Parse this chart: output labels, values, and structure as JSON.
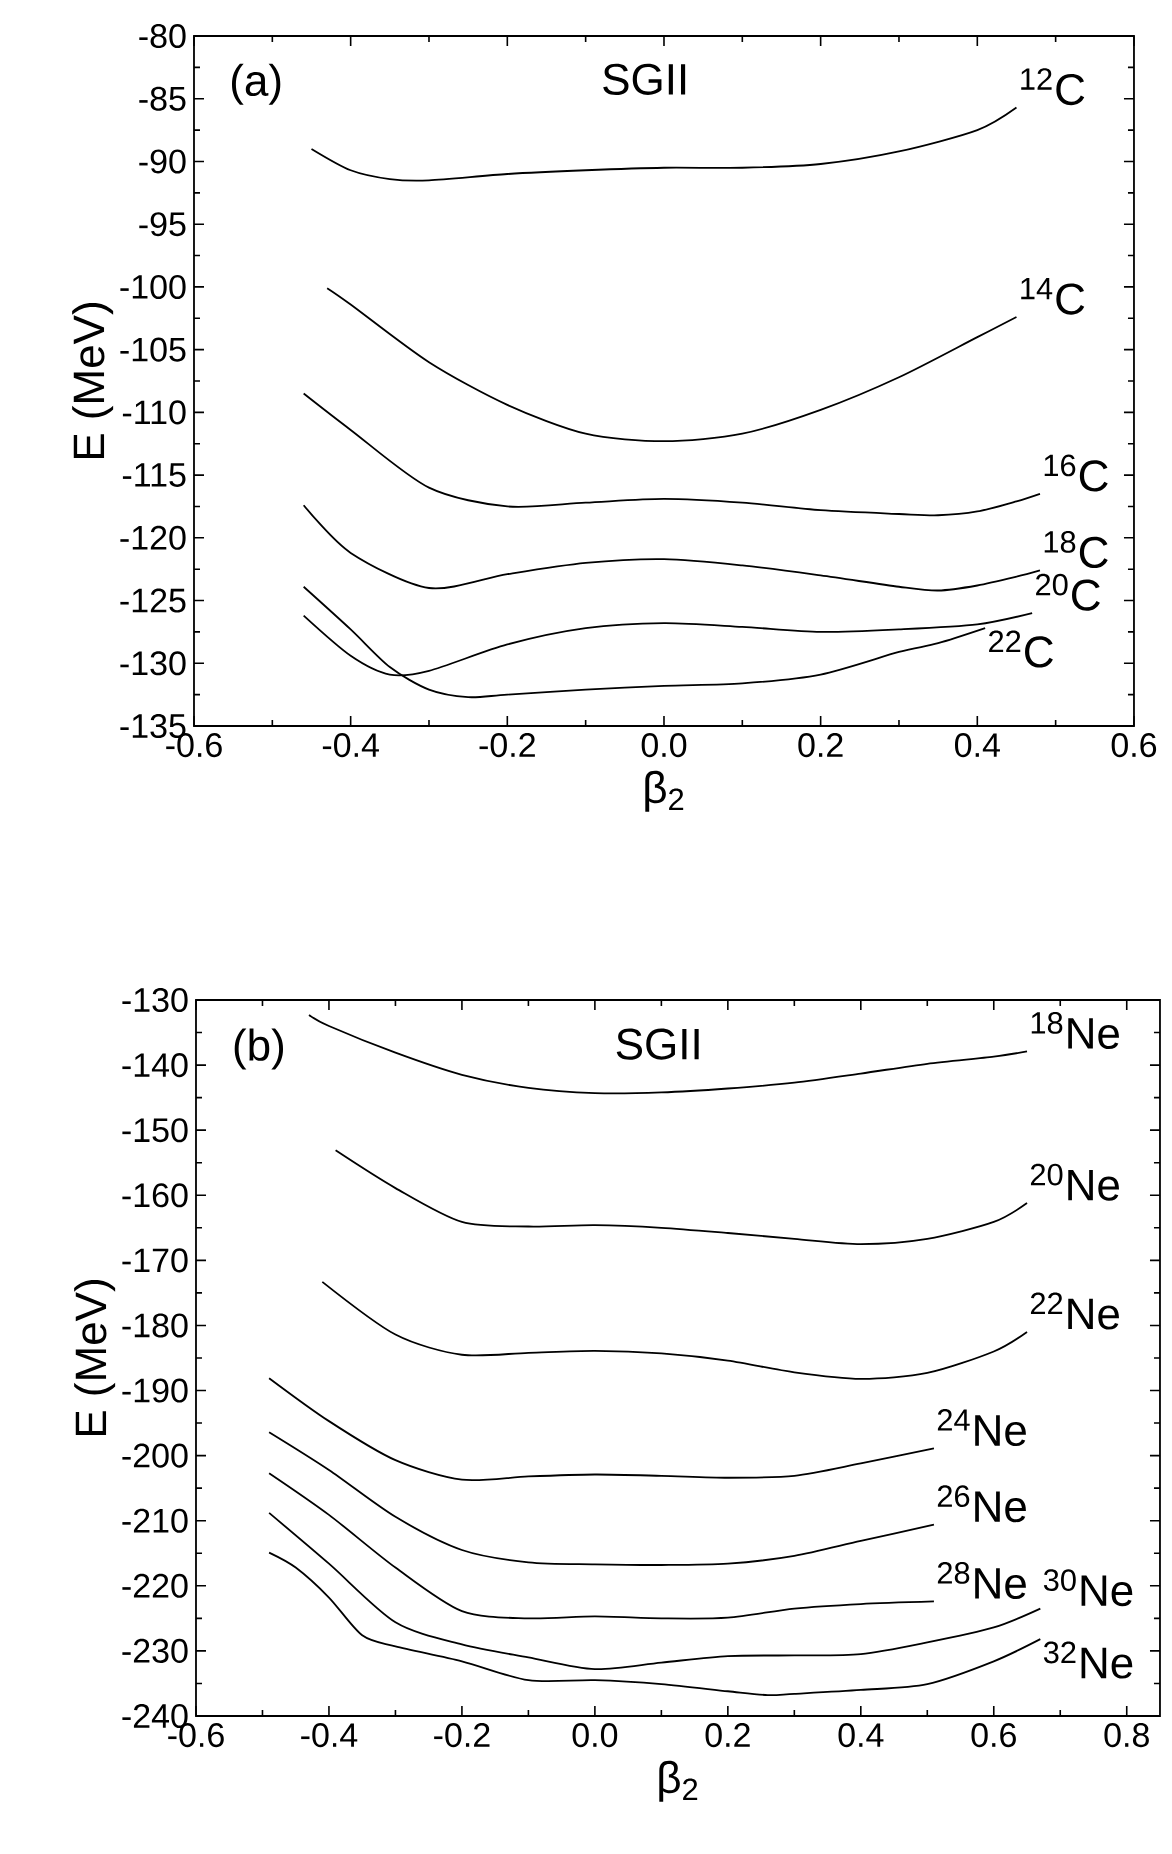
{
  "chart_data": [
    {
      "type": "line",
      "title": "SGII",
      "xlabel": "β$_{2}$",
      "ylabel": "E (MeV)",
      "annotations": [
        "(a)"
      ],
      "xlim": [
        -0.6,
        0.6
      ],
      "xticks": [
        -0.6,
        -0.4,
        -0.2,
        {
          "value": 0,
          "label": "0.0"
        },
        0.2,
        0.4,
        0.6
      ],
      "ylim": [
        -135,
        -80
      ],
      "yticks": [
        -135,
        -130,
        -125,
        -120,
        -115,
        -110,
        -105,
        -100,
        -95,
        -90,
        -85,
        -80
      ],
      "legend": "right",
      "grid": false,
      "series": [
        {
          "name": "$^{12}$C",
          "color": "#000000",
          "x": [
            -0.45,
            -0.4,
            -0.35,
            -0.3,
            -0.2,
            -0.1,
            0,
            0.1,
            0.2,
            0.3,
            0.4,
            0.45
          ],
          "values": [
            -89,
            -90.7,
            -91.4,
            -91.5,
            -91.0,
            -90.7,
            -90.5,
            -90.5,
            -90.2,
            -89.2,
            -87.5,
            -85.7
          ]
        },
        {
          "name": "$^{14}$C",
          "color": "#000000",
          "x": [
            -0.43,
            -0.4,
            -0.3,
            -0.2,
            -0.1,
            0,
            0.1,
            0.2,
            0.3,
            0.4,
            0.45
          ],
          "values": [
            -100.1,
            -101.4,
            -106,
            -109.4,
            -111.7,
            -112.3,
            -111.7,
            -109.8,
            -107.2,
            -104,
            -102.4
          ]
        },
        {
          "name": "$^{16}$C",
          "color": "#000000",
          "x": [
            -0.46,
            -0.4,
            -0.3,
            -0.2,
            -0.1,
            0,
            0.1,
            0.2,
            0.3,
            0.35,
            0.4,
            0.45,
            0.48
          ],
          "values": [
            -108.5,
            -111.4,
            -116,
            -117.5,
            -117.2,
            -116.9,
            -117.2,
            -117.8,
            -118.1,
            -118.2,
            -117.9,
            -117.1,
            -116.5
          ]
        },
        {
          "name": "$^{18}$C",
          "color": "#000000",
          "x": [
            -0.46,
            -0.4,
            -0.3,
            -0.2,
            -0.1,
            0,
            0.1,
            0.2,
            0.3,
            0.35,
            0.4,
            0.45,
            0.48
          ],
          "values": [
            -117.4,
            -121.2,
            -124,
            -122.9,
            -122,
            -121.7,
            -122.2,
            -123,
            -123.9,
            -124.2,
            -123.8,
            -123.1,
            -122.6
          ]
        },
        {
          "name": "$^{20}$C",
          "color": "#000000",
          "x": [
            -0.46,
            -0.4,
            -0.35,
            -0.3,
            -0.2,
            -0.1,
            0,
            0.1,
            0.2,
            0.3,
            0.4,
            0.47
          ],
          "values": [
            -126.2,
            -129.4,
            -130.9,
            -130.6,
            -128.5,
            -127.2,
            -126.8,
            -127.1,
            -127.5,
            -127.3,
            -126.9,
            -126
          ]
        },
        {
          "name": "$^{22}$C",
          "color": "#000000",
          "x": [
            -0.46,
            -0.4,
            -0.35,
            -0.3,
            -0.25,
            -0.2,
            -0.1,
            0,
            0.1,
            0.2,
            0.3,
            0.35,
            0.41
          ],
          "values": [
            -123.9,
            -127.3,
            -130.3,
            -132.1,
            -132.7,
            -132.5,
            -132.1,
            -131.8,
            -131.6,
            -130.9,
            -129.1,
            -128.4,
            -127.2
          ]
        }
      ]
    },
    {
      "type": "line",
      "title": "SGII",
      "xlabel": "β$_{2}$",
      "ylabel": "E (MeV)",
      "annotations": [
        "(b)"
      ],
      "xlim": [
        -0.6,
        0.85
      ],
      "xticks": [
        -0.6,
        -0.4,
        -0.2,
        {
          "value": 0,
          "label": "0.0"
        },
        0.2,
        0.4,
        0.6,
        0.8
      ],
      "ylim": [
        -240,
        -130
      ],
      "yticks": [
        -240,
        -230,
        -220,
        -210,
        -200,
        -190,
        -180,
        -170,
        -160,
        -150,
        -140,
        -130
      ],
      "legend": "right",
      "grid": false,
      "series": [
        {
          "name": "$^{18}$Ne",
          "color": "#000000",
          "x": [
            -0.43,
            -0.4,
            -0.3,
            -0.2,
            -0.1,
            0,
            0.1,
            0.2,
            0.3,
            0.4,
            0.5,
            0.6,
            0.65
          ],
          "values": [
            -132.3,
            -134,
            -138.1,
            -141.5,
            -143.5,
            -144.3,
            -144.2,
            -143.6,
            -142.7,
            -141.3,
            -139.8,
            -138.7,
            -137.9
          ]
        },
        {
          "name": "$^{20}$Ne",
          "color": "#000000",
          "x": [
            -0.39,
            -0.3,
            -0.2,
            -0.1,
            0,
            0.1,
            0.2,
            0.3,
            0.4,
            0.5,
            0.6,
            0.65
          ],
          "values": [
            -153.1,
            -158.9,
            -164.1,
            -164.8,
            -164.6,
            -165,
            -165.8,
            -166.7,
            -167.5,
            -166.7,
            -164.1,
            -161.2
          ]
        },
        {
          "name": "$^{22}$Ne",
          "color": "#000000",
          "x": [
            -0.41,
            -0.3,
            -0.2,
            -0.1,
            0,
            0.1,
            0.2,
            0.3,
            0.4,
            0.5,
            0.6,
            0.65
          ],
          "values": [
            -173.3,
            -181.4,
            -184.5,
            -184.2,
            -183.9,
            -184.3,
            -185.4,
            -187.2,
            -188.2,
            -187.3,
            -184,
            -181
          ]
        },
        {
          "name": "$^{24}$Ne",
          "color": "#000000",
          "x": [
            -0.49,
            -0.4,
            -0.3,
            -0.2,
            -0.1,
            0,
            0.1,
            0.2,
            0.3,
            0.4,
            0.51
          ],
          "values": [
            -188.1,
            -194.7,
            -200.7,
            -203.7,
            -203.2,
            -202.9,
            -203.1,
            -203.4,
            -203.1,
            -201.2,
            -198.9
          ]
        },
        {
          "name": "$^{26}$Ne",
          "color": "#000000",
          "x": [
            -0.49,
            -0.4,
            -0.3,
            -0.2,
            -0.1,
            0,
            0.1,
            0.2,
            0.3,
            0.4,
            0.51
          ],
          "values": [
            -196.4,
            -202.2,
            -209.4,
            -214.5,
            -216.4,
            -216.7,
            -216.8,
            -216.6,
            -215.4,
            -213.1,
            -210.6
          ]
        },
        {
          "name": "$^{28}$Ne",
          "color": "#000000",
          "x": [
            -0.49,
            -0.4,
            -0.3,
            -0.2,
            -0.1,
            0,
            0.1,
            0.2,
            0.3,
            0.4,
            0.51
          ],
          "values": [
            -202.7,
            -209.1,
            -217.2,
            -223.9,
            -225,
            -224.7,
            -225,
            -224.9,
            -223.5,
            -222.8,
            -222.4
          ]
        },
        {
          "name": "$^{30}$Ne",
          "color": "#000000",
          "x": [
            -0.49,
            -0.4,
            -0.3,
            -0.2,
            -0.1,
            0,
            0.1,
            0.2,
            0.3,
            0.4,
            0.5,
            0.6,
            0.67
          ],
          "values": [
            -208.8,
            -216.6,
            -225.6,
            -229,
            -231,
            -232.8,
            -231.8,
            -230.8,
            -230.7,
            -230.5,
            -228.7,
            -226.4,
            -223.5
          ]
        },
        {
          "name": "$^{32}$Ne",
          "color": "#000000",
          "x": [
            -0.49,
            -0.45,
            -0.4,
            -0.35,
            -0.3,
            -0.2,
            -0.1,
            0,
            0.1,
            0.2,
            0.26,
            0.3,
            0.4,
            0.5,
            0.6,
            0.67
          ],
          "values": [
            -214.9,
            -217.2,
            -221.8,
            -227.6,
            -229.3,
            -231.6,
            -234.5,
            -234.5,
            -235.1,
            -236.2,
            -236.8,
            -236.6,
            -236,
            -235.1,
            -231.6,
            -228.2
          ]
        }
      ]
    }
  ]
}
